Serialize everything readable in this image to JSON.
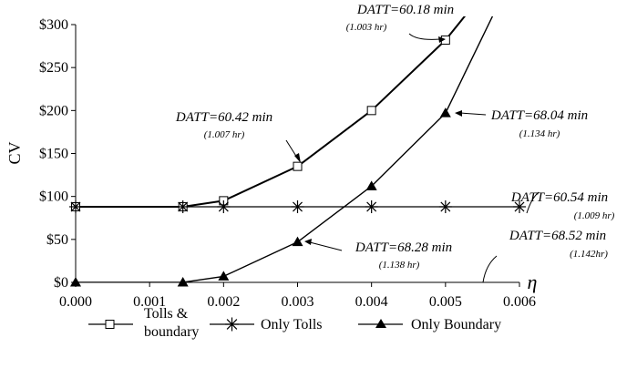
{
  "chart_data": {
    "type": "line",
    "ylabel": "CV",
    "xlabel": "η",
    "xlim": [
      0,
      0.006
    ],
    "ylim": [
      0,
      300
    ],
    "x_ticks": [
      "0.000",
      "0.001",
      "0.002",
      "0.003",
      "0.004",
      "0.005",
      "0.006"
    ],
    "y_ticks": [
      "$0",
      "$50",
      "$100",
      "$150",
      "$200",
      "$250",
      "$300"
    ],
    "grid": false,
    "legend_position": "bottom",
    "series": [
      {
        "name": "Tolls & boundary",
        "legend_lines": [
          "Tolls &",
          "boundary"
        ],
        "marker": "open-square",
        "points": [
          [
            0.0,
            88
          ],
          [
            0.00145,
            88
          ],
          [
            0.002,
            95
          ],
          [
            0.003,
            135
          ],
          [
            0.004,
            200
          ],
          [
            0.005,
            282
          ],
          [
            0.00545,
            330
          ]
        ]
      },
      {
        "name": "Only Tolls",
        "legend_lines": [
          "Only Tolls"
        ],
        "marker": "asterisk",
        "points": [
          [
            0.0,
            88
          ],
          [
            0.00145,
            88
          ],
          [
            0.002,
            88
          ],
          [
            0.003,
            88
          ],
          [
            0.004,
            88
          ],
          [
            0.005,
            88
          ],
          [
            0.006,
            88
          ]
        ]
      },
      {
        "name": "Only Boundary",
        "legend_lines": [
          "Only Boundary"
        ],
        "marker": "filled-triangle",
        "points": [
          [
            0.0,
            0
          ],
          [
            0.00145,
            0
          ],
          [
            0.002,
            7
          ],
          [
            0.003,
            47
          ],
          [
            0.004,
            112
          ],
          [
            0.005,
            197
          ],
          [
            0.00575,
            330
          ]
        ]
      }
    ],
    "annotations": [
      {
        "main": "DATT=60.18 min",
        "sub": "(1.003 hr)"
      },
      {
        "main": "DATT=60.42 min",
        "sub": "(1.007 hr)"
      },
      {
        "main": "DATT=68.04 min",
        "sub": "(1.134 hr)"
      },
      {
        "main": "DATT=60.54 min",
        "sub": "(1.009 hr)"
      },
      {
        "main": "DATT=68.28 min",
        "sub": "(1.138 hr)"
      },
      {
        "main": "DATT=68.52 min",
        "sub": "(1.142hr)"
      }
    ]
  }
}
